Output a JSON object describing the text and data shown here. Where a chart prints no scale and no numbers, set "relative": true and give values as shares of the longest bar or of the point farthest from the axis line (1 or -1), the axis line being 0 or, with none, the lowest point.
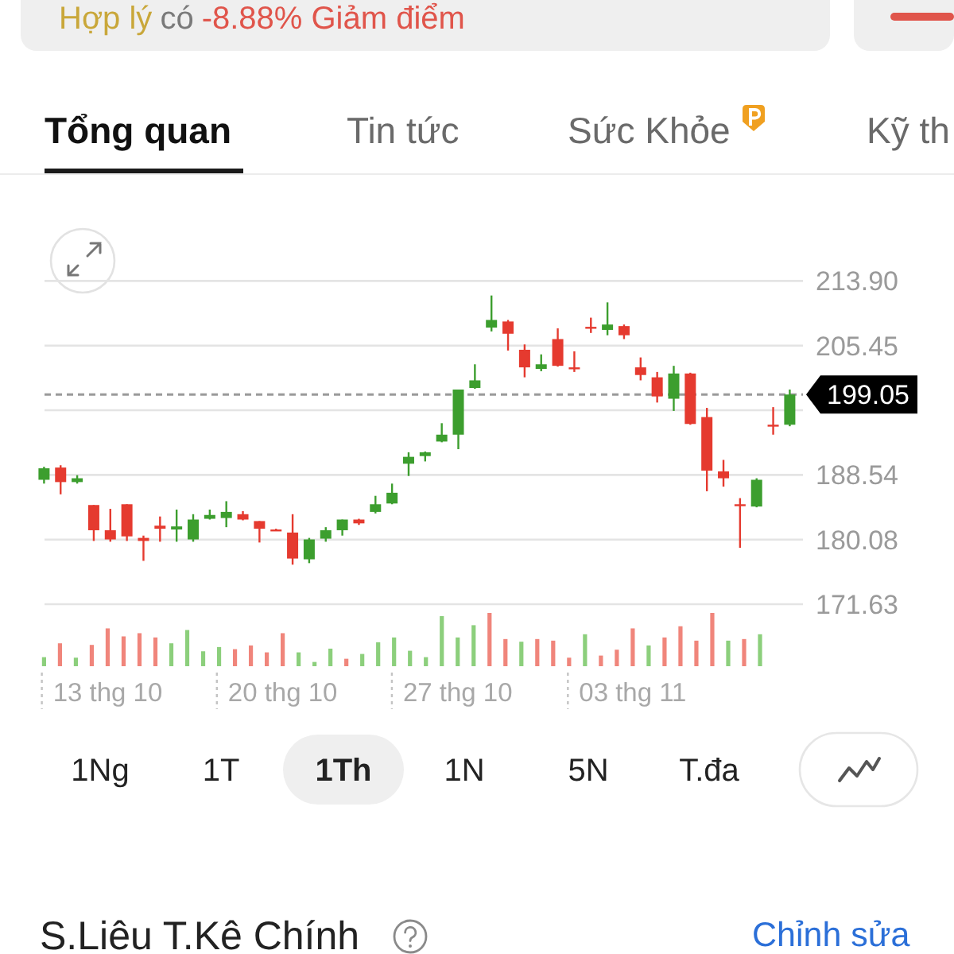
{
  "chart_data": [
    {
      "type": "candlestick",
      "categories": [
        null,
        null,
        null,
        null,
        null,
        null,
        null,
        null,
        null,
        null,
        null,
        null,
        null,
        null,
        null,
        null,
        null,
        null,
        null,
        null,
        null,
        null,
        null,
        null,
        null,
        null,
        null,
        null,
        null,
        null,
        null,
        null,
        null,
        null,
        null,
        null,
        null,
        null,
        null,
        null,
        null,
        null,
        null,
        null,
        null,
        null
      ],
      "ohlc": [
        [
          187.9,
          189.6,
          187.4,
          189.4
        ],
        [
          189.5,
          189.8,
          186.0,
          187.6
        ],
        [
          187.6,
          188.5,
          187.4,
          188.1
        ],
        [
          184.6,
          184.6,
          179.9,
          181.3
        ],
        [
          181.3,
          184.1,
          179.8,
          180.1
        ],
        [
          184.7,
          184.7,
          179.9,
          180.5
        ],
        [
          180.3,
          180.6,
          177.3,
          179.9
        ],
        [
          181.9,
          183.1,
          179.8,
          181.5
        ],
        [
          181.4,
          184.0,
          179.8,
          181.8
        ],
        [
          180.1,
          183.4,
          179.8,
          182.7
        ],
        [
          182.8,
          184.0,
          182.7,
          183.3
        ],
        [
          182.9,
          185.1,
          181.7,
          183.7
        ],
        [
          183.4,
          183.8,
          182.6,
          182.7
        ],
        [
          182.5,
          182.5,
          179.7,
          181.5
        ],
        [
          181.4,
          181.5,
          181.2,
          181.3
        ],
        [
          181.0,
          183.4,
          176.8,
          177.6
        ],
        [
          177.5,
          180.3,
          177.0,
          180.1
        ],
        [
          180.2,
          181.7,
          179.8,
          181.3
        ],
        [
          181.3,
          182.7,
          180.6,
          182.7
        ],
        [
          182.7,
          182.8,
          182.0,
          182.2
        ],
        [
          183.7,
          185.8,
          183.5,
          184.7
        ],
        [
          184.8,
          187.4,
          184.7,
          186.2
        ],
        [
          190.0,
          191.5,
          188.4,
          190.9
        ],
        [
          191.0,
          191.6,
          190.3,
          191.5
        ],
        [
          192.9,
          195.3,
          192.8,
          193.8
        ],
        [
          193.8,
          199.7,
          191.9,
          199.7
        ],
        [
          199.9,
          203.0,
          199.8,
          200.9
        ],
        [
          207.8,
          212.0,
          207.3,
          208.8
        ],
        [
          208.6,
          208.8,
          204.8,
          207.0
        ],
        [
          204.9,
          205.6,
          201.3,
          202.6
        ],
        [
          202.4,
          204.3,
          202.1,
          203.0
        ],
        [
          206.3,
          207.7,
          202.7,
          202.8
        ],
        [
          202.6,
          204.7,
          202.0,
          202.5
        ],
        [
          207.9,
          209.1,
          207.1,
          207.8
        ],
        [
          207.5,
          211.1,
          206.8,
          208.2
        ],
        [
          208.0,
          208.2,
          206.3,
          206.8
        ],
        [
          202.6,
          203.9,
          200.9,
          201.6
        ],
        [
          201.3,
          202.0,
          198.0,
          198.8
        ],
        [
          198.5,
          202.8,
          196.9,
          201.8
        ],
        [
          201.8,
          201.9,
          195.1,
          195.2
        ],
        [
          196.1,
          197.3,
          186.4,
          189.1
        ],
        [
          189.0,
          190.5,
          187.0,
          188.1
        ],
        [
          184.7,
          185.5,
          179.0,
          184.6
        ],
        [
          184.4,
          188.1,
          184.3,
          187.9
        ],
        [
          195.1,
          197.4,
          193.8,
          195.0
        ],
        [
          195.1,
          199.7,
          194.9,
          199.05
        ]
      ],
      "colors": [
        "#3c9e2e",
        "#e53a2f",
        "#3c9e2e",
        "#e53a2f",
        "#e53a2f",
        "#e53a2f",
        "#e53a2f",
        "#e53a2f",
        "#3c9e2e",
        "#3c9e2e",
        "#3c9e2e",
        "#3c9e2e",
        "#e53a2f",
        "#e53a2f",
        "#e53a2f",
        "#e53a2f",
        "#3c9e2e",
        "#3c9e2e",
        "#3c9e2e",
        "#e53a2f",
        "#3c9e2e",
        "#3c9e2e",
        "#3c9e2e",
        "#3c9e2e",
        "#3c9e2e",
        "#3c9e2e",
        "#3c9e2e",
        "#3c9e2e",
        "#e53a2f",
        "#e53a2f",
        "#3c9e2e",
        "#e53a2f",
        "#e53a2f",
        "#e53a2f",
        "#3c9e2e",
        "#e53a2f",
        "#e53a2f",
        "#e53a2f",
        "#3c9e2e",
        "#e53a2f",
        "#e53a2f",
        "#e53a2f",
        "#e53a2f",
        "#3c9e2e",
        "#e53a2f",
        "#3c9e2e"
      ],
      "ylim": [
        171.63,
        213.9
      ],
      "yticks": [
        171.63,
        180.08,
        188.54,
        {
          "value": 196.99,
          "label": null
        },
        205.45,
        {
          "value": 213.9,
          "label": "213.90"
        }
      ],
      "grid": "y",
      "ref_lines": [
        {
          "axis": "y",
          "value": 199.05,
          "label": "199.05",
          "color": "#9a9a9a",
          "line_style": "dashed"
        }
      ],
      "annotations": [
        "Hợp lý",
        "có",
        "-8.88% Giảm điểm",
        "Tổng quan",
        "Tin tức",
        "Sức Khỏe",
        "Kỹ th",
        "1Ng",
        "1T",
        "1Th",
        "1N",
        "5N",
        "T.đa",
        "S.Liêu T.Kê Chính",
        "Chỉnh sửa"
      ]
    },
    {
      "type": "bar",
      "relative": true,
      "categories": [
        null,
        null,
        null,
        null,
        "13 thg 10",
        null,
        null,
        null,
        null,
        null,
        null,
        null,
        null,
        null,
        null,
        "20 thg 10",
        null,
        null,
        null,
        null,
        null,
        null,
        null,
        null,
        null,
        null,
        "27 thg 10",
        null,
        null,
        null,
        null,
        null,
        null,
        null,
        null,
        null,
        null,
        "03 thg 11",
        null,
        null,
        null,
        null,
        null,
        null,
        null,
        null
      ],
      "values": [
        0.17,
        0.43,
        0.16,
        0.4,
        0.71,
        0.56,
        0.62,
        0.54,
        0.43,
        0.68,
        0.28,
        0.36,
        0.32,
        0.39,
        0.26,
        0.62,
        0.26,
        0.08,
        0.33,
        0.14,
        0.23,
        0.45,
        0.54,
        0.29,
        0.17,
        0.94,
        0.54,
        0.77,
        1,
        0.51,
        0.46,
        0.51,
        0.48,
        0.16,
        0.6,
        0.2,
        0.31,
        0.71,
        0.39,
        0.54,
        0.75,
        0.48,
        1,
        0.48,
        0.51,
        0.6
      ],
      "colors": [
        "#8ccf7c",
        "#f0857b",
        "#8ccf7c",
        "#f0857b",
        "#f0857b",
        "#f0857b",
        "#f0857b",
        "#f0857b",
        "#8ccf7c",
        "#8ccf7c",
        "#8ccf7c",
        "#8ccf7c",
        "#f0857b",
        "#f0857b",
        "#f0857b",
        "#f0857b",
        "#8ccf7c",
        "#8ccf7c",
        "#8ccf7c",
        "#f0857b",
        "#8ccf7c",
        "#8ccf7c",
        "#8ccf7c",
        "#8ccf7c",
        "#8ccf7c",
        "#8ccf7c",
        "#8ccf7c",
        "#8ccf7c",
        "#f0857b",
        "#f0857b",
        "#8ccf7c",
        "#f0857b",
        "#f0857b",
        "#f0857b",
        "#8ccf7c",
        "#f0857b",
        "#f0857b",
        "#f0857b",
        "#8ccf7c",
        "#f0857b",
        "#f0857b",
        "#f0857b",
        "#f0857b",
        "#8ccf7c",
        "#f0857b",
        "#8ccf7c"
      ]
    }
  ]
}
